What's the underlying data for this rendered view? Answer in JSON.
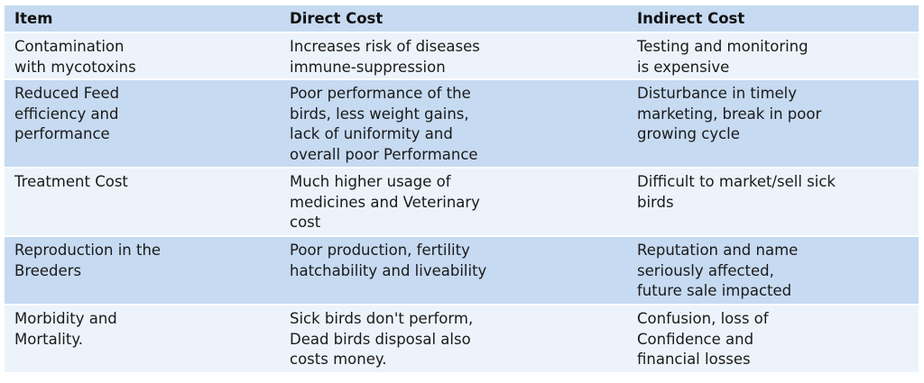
{
  "table": {
    "headers": [
      "Item",
      "Direct Cost",
      "Indirect Cost"
    ],
    "rows": [
      {
        "item": "Contamination\nwith mycotoxins",
        "direct": "Increases risk of diseases\nimmune-suppression",
        "indirect": "Testing and monitoring\nis expensive"
      },
      {
        "item": "Reduced Feed\nefficiency and\nperformance",
        "direct": "Poor performance of the\nbirds, less weight gains,\nlack of uniformity and\noverall poor Performance",
        "indirect": "Disturbance in timely\nmarketing, break in poor\ngrowing cycle"
      },
      {
        "item": "Treatment Cost",
        "direct": "Much higher usage of\nmedicines and Veterinary\ncost",
        "indirect": "Difficult to market/sell sick\nbirds"
      },
      {
        "item": "Reproduction in the\nBreeders",
        "direct": "Poor production, fertility\nhatchability and liveability",
        "indirect": "Reputation and name\nseriously affected,\nfuture sale impacted"
      },
      {
        "item": "Morbidity and\nMortality.",
        "direct": "Sick birds don't  perform,\nDead birds disposal also\ncosts money.",
        "indirect": "Confusion, loss of\nConfidence and\nfinancial losses"
      }
    ]
  },
  "colors": {
    "header_bg": "#c6daf1",
    "row_light": "#ecf3fb",
    "row_dark": "#c6daf1"
  }
}
